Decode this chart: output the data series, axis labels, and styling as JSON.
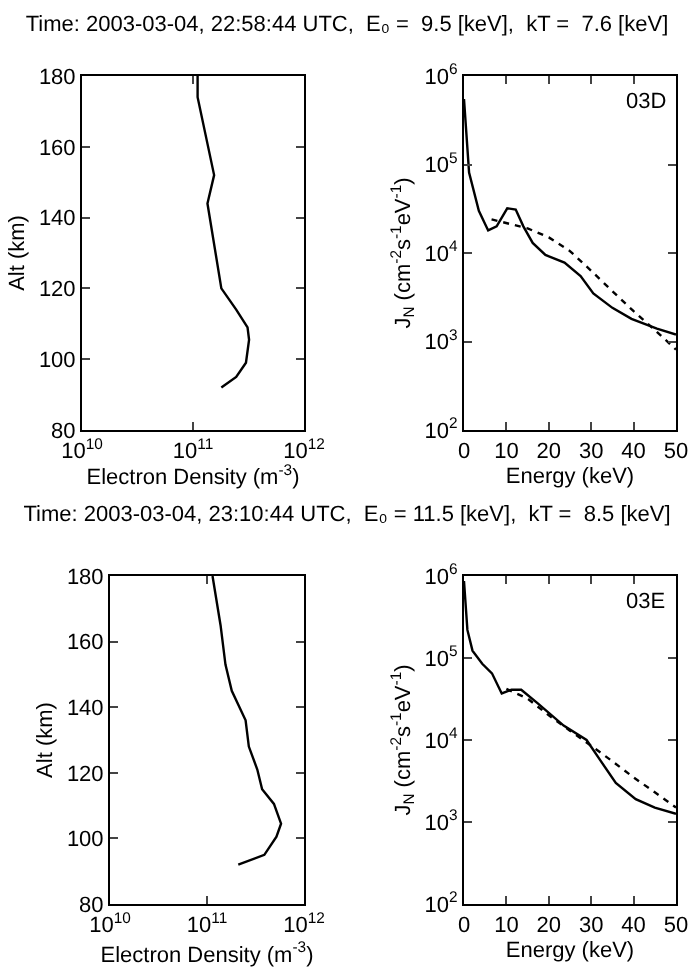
{
  "chart_data": [
    {
      "type": "line",
      "title": "Time: 2003-03-04, 22:58:44 UTC,  E₀ =  9.5 [keV],  kT =  7.6 [keV]",
      "xlabel": "Electron Density (m$^{-3}$)",
      "ylabel": "Alt (km)",
      "log": "x",
      "xlim": [
        10000000000.0,
        1000000000000.0
      ],
      "ylim": [
        80,
        180
      ],
      "xticks": [
        {
          "value": 10000000000.0,
          "label": "10$^{10}$"
        },
        {
          "value": 100000000000.0,
          "label": "10$^{11}$"
        },
        {
          "value": 1000000000000.0,
          "label": "10$^{12}$"
        }
      ],
      "yticks": [
        80,
        100,
        120,
        140,
        160,
        180
      ],
      "series": [
        {
          "color": "#000000",
          "x": [
            110000000000.0,
            110000000000.0,
            155000000000.0,
            135000000000.0,
            180000000000.0,
            245000000000.0,
            310000000000.0,
            320000000000.0,
            300000000000.0,
            245000000000.0,
            180000000000.0
          ],
          "values": [
            180,
            174,
            152,
            144,
            120,
            114,
            109,
            105.5,
            99,
            95,
            92
          ]
        }
      ]
    },
    {
      "type": "line",
      "xlabel": "Energy (keV)",
      "ylabel": "J$_{N}$ (cm$^{-2}$s$^{-1}$eV$^{-1}$)",
      "log": "y",
      "xlim": [
        0,
        50
      ],
      "ylim": [
        100,
        1000000
      ],
      "annotations": [
        "03D"
      ],
      "xticks": [
        0,
        10,
        20,
        30,
        40,
        50
      ],
      "yticks": [
        {
          "value": 100,
          "label": "10$^{2}$"
        },
        {
          "value": 1000,
          "label": "10$^{3}$"
        },
        {
          "value": 10000,
          "label": "10$^{4}$"
        },
        {
          "value": 100000,
          "label": "10$^{5}$"
        },
        {
          "value": 1000000,
          "label": "10$^{6}$"
        }
      ],
      "series": [
        {
          "color": "#000000",
          "line_style": "solid",
          "x": [
            0,
            1.2,
            3.5,
            5.7,
            7.7,
            10.2,
            12.2,
            14,
            16.2,
            19.2,
            23.7,
            27.5,
            30.5,
            35,
            39.5,
            45.5,
            50
          ],
          "values": [
            550000,
            81000,
            30000,
            18000,
            20000,
            32000,
            31000,
            20000,
            13000,
            9500,
            7800,
            5500,
            3500,
            2400,
            1800,
            1400,
            1200
          ]
        },
        {
          "color": "#000000",
          "line_style": "dotted",
          "x": [
            6.5,
            15,
            20,
            25,
            30,
            35,
            40,
            45,
            50
          ],
          "values": [
            24000,
            19000,
            15000,
            10500,
            6300,
            3700,
            2200,
            1350,
            810
          ]
        }
      ]
    },
    {
      "type": "line",
      "title": "Time: 2003-03-04, 23:10:44 UTC,  E₀ = 11.5 [keV],  kT =  8.5 [keV]",
      "xlabel": "Electron Density (m$^{-3}$)",
      "ylabel": "Alt (km)",
      "log": "x",
      "xlim": [
        10000000000.0,
        1000000000000.0
      ],
      "ylim": [
        80,
        180
      ],
      "xticks": [
        {
          "value": 10000000000.0,
          "label": "10$^{10}$"
        },
        {
          "value": 100000000000.0,
          "label": "10$^{11}$"
        },
        {
          "value": 1000000000000.0,
          "label": "10$^{12}$"
        }
      ],
      "yticks": [
        80,
        100,
        120,
        140,
        160,
        180
      ],
      "series": [
        {
          "color": "#000000",
          "x": [
            114000000000.0,
            138000000000.0,
            155000000000.0,
            180000000000.0,
            250000000000.0,
            270000000000.0,
            330000000000.0,
            370000000000.0,
            490000000000.0,
            580000000000.0,
            520000000000.0,
            390000000000.0,
            210000000000.0
          ],
          "values": [
            180,
            165,
            153,
            145,
            136,
            128,
            121,
            115,
            110.5,
            104.5,
            100.5,
            95,
            92
          ]
        }
      ]
    },
    {
      "type": "line",
      "xlabel": "Energy (keV)",
      "ylabel": "J$_{N}$ (cm$^{-2}$s$^{-1}$eV$^{-1}$)",
      "log": "y",
      "xlim": [
        0,
        50
      ],
      "ylim": [
        100,
        1000000
      ],
      "annotations": [
        "03E"
      ],
      "xticks": [
        0,
        10,
        20,
        30,
        40,
        50
      ],
      "yticks": [
        {
          "value": 100,
          "label": "10$^{2}$"
        },
        {
          "value": 1000,
          "label": "10$^{3}$"
        },
        {
          "value": 10000,
          "label": "10$^{4}$"
        },
        {
          "value": 100000,
          "label": "10$^{5}$"
        },
        {
          "value": 1000000,
          "label": "10$^{6}$"
        }
      ],
      "series": [
        {
          "color": "#000000",
          "line_style": "solid",
          "x": [
            0,
            0.8,
            2,
            4.3,
            6.6,
            8.9,
            11.2,
            13.5,
            17.4,
            23.5,
            28.9,
            32,
            35.8,
            40.5,
            45,
            50
          ],
          "values": [
            870000,
            220000,
            123000,
            85000,
            65000,
            37000,
            41000,
            41000,
            28000,
            15000,
            10000,
            5800,
            3000,
            1900,
            1500,
            1260
          ]
        },
        {
          "color": "#000000",
          "line_style": "dotted",
          "x": [
            10,
            15,
            20,
            25,
            30,
            35,
            40,
            45,
            50
          ],
          "values": [
            42000,
            32000,
            20000,
            13000,
            8500,
            5500,
            3500,
            2300,
            1500
          ]
        }
      ]
    }
  ]
}
